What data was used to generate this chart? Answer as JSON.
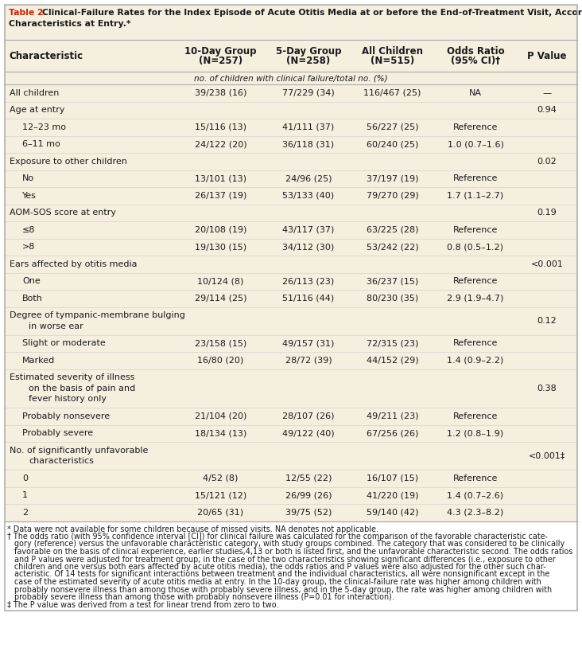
{
  "title_bold": "Table 2.",
  "title_rest": " Clinical-Failure Rates for the Index Episode of Acute Otitis Media at or before the End-of-Treatment Visit, According to Selected\nCharacteristics at Entry.*",
  "header_bg": "#f5efe0",
  "col_headers": [
    "Characteristic",
    "10-Day Group\n(N=257)",
    "5-Day Group\n(N=258)",
    "All Children\n(N=515)",
    "Odds Ratio\n(95% CI)†",
    "P Value"
  ],
  "subheader": "no. of children with clinical failure/total no. (%)",
  "rows": [
    {
      "label": "All children",
      "indent": 0,
      "col1": "39/238 (16)",
      "col2": "77/229 (34)",
      "col3": "116/467 (25)",
      "col4": "NA",
      "col5": "—",
      "is_category": false
    },
    {
      "label": "Age at entry",
      "indent": 0,
      "col1": "",
      "col2": "",
      "col3": "",
      "col4": "",
      "col5": "0.94",
      "is_category": true
    },
    {
      "label": "12–23 mo",
      "indent": 1,
      "col1": "15/116 (13)",
      "col2": "41/111 (37)",
      "col3": "56/227 (25)",
      "col4": "Reference",
      "col5": "",
      "is_category": false
    },
    {
      "label": "6–11 mo",
      "indent": 1,
      "col1": "24/122 (20)",
      "col2": "36/118 (31)",
      "col3": "60/240 (25)",
      "col4": "1.0 (0.7–1.6)",
      "col5": "",
      "is_category": false
    },
    {
      "label": "Exposure to other children",
      "indent": 0,
      "col1": "",
      "col2": "",
      "col3": "",
      "col4": "",
      "col5": "0.02",
      "is_category": true
    },
    {
      "label": "No",
      "indent": 1,
      "col1": "13/101 (13)",
      "col2": "24/96 (25)",
      "col3": "37/197 (19)",
      "col4": "Reference",
      "col5": "",
      "is_category": false
    },
    {
      "label": "Yes",
      "indent": 1,
      "col1": "26/137 (19)",
      "col2": "53/133 (40)",
      "col3": "79/270 (29)",
      "col4": "1.7 (1.1–2.7)",
      "col5": "",
      "is_category": false
    },
    {
      "label": "AOM-SOS score at entry",
      "indent": 0,
      "col1": "",
      "col2": "",
      "col3": "",
      "col4": "",
      "col5": "0.19",
      "is_category": true
    },
    {
      "label": "≤8",
      "indent": 1,
      "col1": "20/108 (19)",
      "col2": "43/117 (37)",
      "col3": "63/225 (28)",
      "col4": "Reference",
      "col5": "",
      "is_category": false
    },
    {
      "label": ">8",
      "indent": 1,
      "col1": "19/130 (15)",
      "col2": "34/112 (30)",
      "col3": "53/242 (22)",
      "col4": "0.8 (0.5–1.2)",
      "col5": "",
      "is_category": false
    },
    {
      "label": "Ears affected by otitis media",
      "indent": 0,
      "col1": "",
      "col2": "",
      "col3": "",
      "col4": "",
      "col5": "<0.001",
      "is_category": true
    },
    {
      "label": "One",
      "indent": 1,
      "col1": "10/124 (8)",
      "col2": "26/113 (23)",
      "col3": "36/237 (15)",
      "col4": "Reference",
      "col5": "",
      "is_category": false
    },
    {
      "label": "Both",
      "indent": 1,
      "col1": "29/114 (25)",
      "col2": "51/116 (44)",
      "col3": "80/230 (35)",
      "col4": "2.9 (1.9–4.7)",
      "col5": "",
      "is_category": false
    },
    {
      "label": "Degree of tympanic-membrane bulging\nin worse ear",
      "indent": 0,
      "col1": "",
      "col2": "",
      "col3": "",
      "col4": "",
      "col5": "0.12",
      "is_category": true
    },
    {
      "label": "Slight or moderate",
      "indent": 1,
      "col1": "23/158 (15)",
      "col2": "49/157 (31)",
      "col3": "72/315 (23)",
      "col4": "Reference",
      "col5": "",
      "is_category": false
    },
    {
      "label": "Marked",
      "indent": 1,
      "col1": "16/80 (20)",
      "col2": "28/72 (39)",
      "col3": "44/152 (29)",
      "col4": "1.4 (0.9–2.2)",
      "col5": "",
      "is_category": false
    },
    {
      "label": "Estimated severity of illness\non the basis of pain and\nfever history only",
      "indent": 0,
      "col1": "",
      "col2": "",
      "col3": "",
      "col4": "",
      "col5": "0.38",
      "is_category": true
    },
    {
      "label": "Probably nonsevere",
      "indent": 1,
      "col1": "21/104 (20)",
      "col2": "28/107 (26)",
      "col3": "49/211 (23)",
      "col4": "Reference",
      "col5": "",
      "is_category": false
    },
    {
      "label": "Probably severe",
      "indent": 1,
      "col1": "18/134 (13)",
      "col2": "49/122 (40)",
      "col3": "67/256 (26)",
      "col4": "1.2 (0.8–1.9)",
      "col5": "",
      "is_category": false
    },
    {
      "label": "No. of significantly unfavorable\ncharacteristics",
      "indent": 0,
      "col1": "",
      "col2": "",
      "col3": "",
      "col4": "",
      "col5": "<0.001‡",
      "is_category": true
    },
    {
      "label": "0",
      "indent": 1,
      "col1": "4/52 (8)",
      "col2": "12/55 (22)",
      "col3": "16/107 (15)",
      "col4": "Reference",
      "col5": "",
      "is_category": false
    },
    {
      "label": "1",
      "indent": 1,
      "col1": "15/121 (12)",
      "col2": "26/99 (26)",
      "col3": "41/220 (19)",
      "col4": "1.4 (0.7–2.6)",
      "col5": "",
      "is_category": false
    },
    {
      "label": "2",
      "indent": 1,
      "col1": "20/65 (31)",
      "col2": "39/75 (52)",
      "col3": "59/140 (42)",
      "col4": "4.3 (2.3–8.2)",
      "col5": "",
      "is_category": false
    }
  ],
  "footnote_lines": [
    "* Data were not available for some children because of missed visits. NA denotes not applicable.",
    "† The odds ratio (with 95% confidence interval [CI]) for clinical failure was calculated for the comparison of the favorable characteristic cate-",
    "   gory (reference) versus the unfavorable characteristic category, with study groups combined. The category that was considered to be clinically",
    "   favorable on the basis of clinical experience, earlier studies,4,13 or both is listed first, and the unfavorable characteristic second. The odds ratios",
    "   and P values were adjusted for treatment group; in the case of the two characteristics showing significant differences (i.e., exposure to other",
    "   children and one versus both ears affected by acute otitis media), the odds ratios and P values were also adjusted for the other such char-",
    "   acteristic. Of 14 tests for significant interactions between treatment and the individual characteristics, all were nonsignificant except in the",
    "   case of the estimated severity of acute otitis media at entry. In the 10-day group, the clinical-failure rate was higher among children with",
    "   probably nonsevere illness than among those with probably severe illness, and in the 5-day group, the rate was higher among children with",
    "   probably severe illness than among those with probably nonsevere illness (P=0.01 for interaction).",
    "‡ The P value was derived from a test for linear trend from zero to two."
  ],
  "border_color": "#aaaaaa",
  "text_color": "#1a1a1a",
  "bg_color": "#ffffff",
  "title_color": "#cc2200",
  "row_line_color": "#cccccc"
}
